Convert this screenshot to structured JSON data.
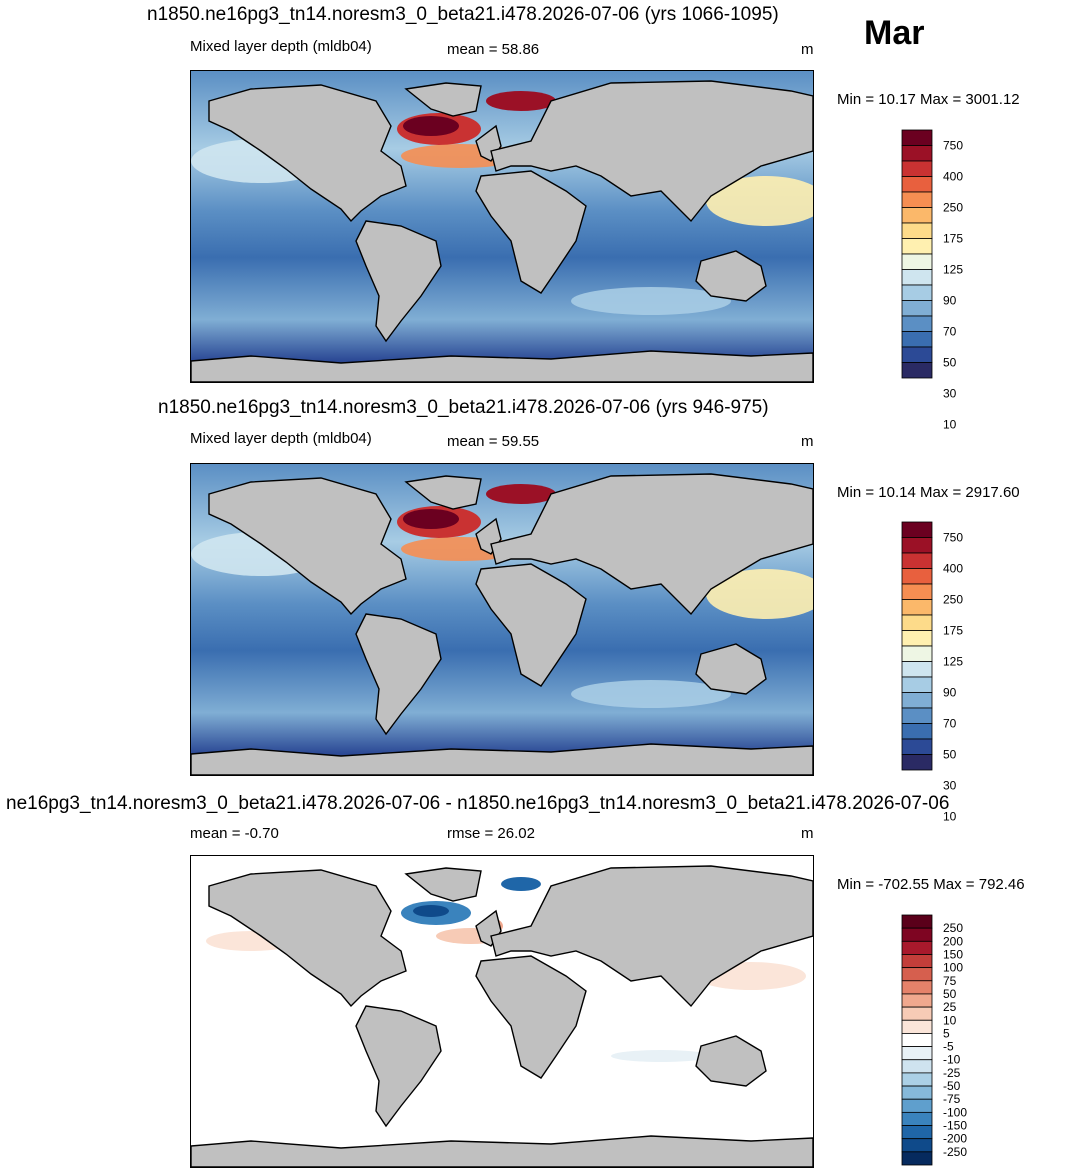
{
  "month": "Mar",
  "panels": [
    {
      "title": "n1850.ne16pg3_tn14.noresm3_0_beta21.i478.2026-07-06 (yrs 1066-1095)",
      "left_label": "Mixed layer depth (mldb04)",
      "center_label": "mean =  58.86",
      "units": "m",
      "minmax": "Min =  10.17 Max = 3001.12",
      "colorbar": [
        "10",
        "30",
        "50",
        "70",
        "90",
        "125",
        "175",
        "250",
        "400",
        "750"
      ],
      "colors": [
        "#2a2a64",
        "#2c4a96",
        "#3a6eb0",
        "#5b8fc4",
        "#80aed4",
        "#a7cce4",
        "#cfe5ef",
        "#eef6e4",
        "#fff0b0",
        "#fddb8a",
        "#fbb86a",
        "#f68e52",
        "#e8603e",
        "#c93232",
        "#9b1126",
        "#6b0020"
      ]
    },
    {
      "title": "n1850.ne16pg3_tn14.noresm3_0_beta21.i478.2026-07-06 (yrs 946-975)",
      "left_label": "Mixed layer depth (mldb04)",
      "center_label": "mean =  59.55",
      "units": "m",
      "minmax": "Min =  10.14 Max = 2917.60",
      "colorbar": [
        "10",
        "30",
        "50",
        "70",
        "90",
        "125",
        "175",
        "250",
        "400",
        "750"
      ],
      "colors": [
        "#2a2a64",
        "#2c4a96",
        "#3a6eb0",
        "#5b8fc4",
        "#80aed4",
        "#a7cce4",
        "#cfe5ef",
        "#eef6e4",
        "#fff0b0",
        "#fddb8a",
        "#fbb86a",
        "#f68e52",
        "#e8603e",
        "#c93232",
        "#9b1126",
        "#6b0020"
      ]
    },
    {
      "title": "ne16pg3_tn14.noresm3_0_beta21.i478.2026-07-06 - n1850.ne16pg3_tn14.noresm3_0_beta21.i478.2026-07-06",
      "left_label": "mean =  -0.70",
      "center_label": "rmse =  26.02",
      "units": "m",
      "minmax": "Min = -702.55 Max = 792.46",
      "colorbar": [
        "-250",
        "-200",
        "-150",
        "-100",
        "-75",
        "-50",
        "-25",
        "-10",
        "-5",
        "5",
        "10",
        "25",
        "50",
        "75",
        "100",
        "150",
        "200",
        "250"
      ],
      "colors": [
        "#062a5e",
        "#0f4a8a",
        "#1f66a8",
        "#3a83bd",
        "#5f9fcd",
        "#86b9da",
        "#abd0e6",
        "#cfe3ef",
        "#e8f1f6",
        "#ffffff",
        "#fbe5d9",
        "#f7cbb6",
        "#f0a88e",
        "#e5826a",
        "#d65f4e",
        "#c33e3a",
        "#a8192c",
        "#7e0522",
        "#5a001a"
      ]
    }
  ]
}
